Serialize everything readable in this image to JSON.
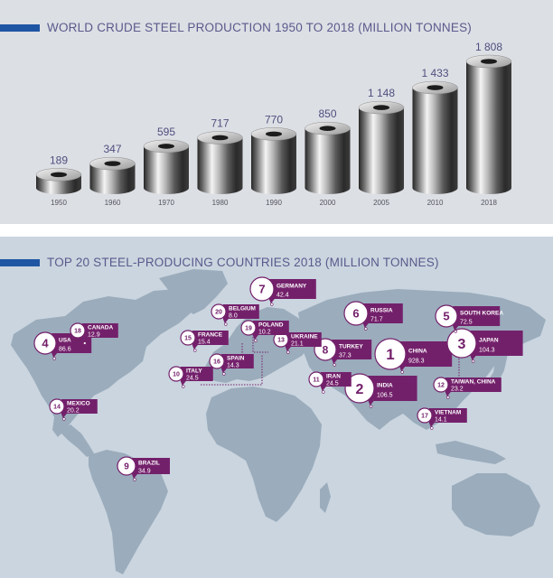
{
  "sections": {
    "production_title": "WORLD CRUDE STEEL PRODUCTION 1950 TO 2018 (MILLION TONNES)",
    "countries_title": "TOP 20 STEEL-PRODUCING COUNTRIES 2018 (MILLION TONNES)"
  },
  "colors": {
    "accent_blue": "#1f56a3",
    "tag_purple": "#73206b",
    "title_text": "#5a5a8c",
    "map_land": "#9bacbc",
    "map_sea": "#cad5df"
  },
  "chart_data": [
    {
      "type": "bar",
      "title": "WORLD CRUDE STEEL PRODUCTION 1950 TO 2018 (MILLION TONNES)",
      "categories": [
        "1950",
        "1960",
        "1970",
        "1980",
        "1990",
        "2000",
        "2005",
        "2010",
        "2018"
      ],
      "values": [
        189,
        347,
        595,
        717,
        770,
        850,
        1148,
        1433,
        1808
      ],
      "labels": [
        "189",
        "347",
        "595",
        "717",
        "770",
        "850",
        "1 148",
        "1 433",
        "1 808"
      ],
      "ylim": [
        0,
        1808
      ],
      "grid": false,
      "mark_style": "cylinder"
    },
    {
      "type": "table",
      "title": "TOP 20 STEEL-PRODUCING COUNTRIES 2018 (MILLION TONNES)",
      "rows": [
        {
          "rank": "1",
          "name": "CHINA",
          "value": "928.3"
        },
        {
          "rank": "2",
          "name": "INDIA",
          "value": "106.5"
        },
        {
          "rank": "3",
          "name": "JAPAN",
          "value": "104.3"
        },
        {
          "rank": "4",
          "name": "USA",
          "value": "86.6"
        },
        {
          "rank": "5",
          "name": "SOUTH KOREA",
          "value": "72.5"
        },
        {
          "rank": "6",
          "name": "RUSSIA",
          "value": "71.7"
        },
        {
          "rank": "7",
          "name": "GERMANY",
          "value": "42.4"
        },
        {
          "rank": "8",
          "name": "TURKEY",
          "value": "37.3"
        },
        {
          "rank": "9",
          "name": "BRAZIL",
          "value": "34.9"
        },
        {
          "rank": "10",
          "name": "ITALY",
          "value": "24.5"
        },
        {
          "rank": "11",
          "name": "IRAN",
          "value": "24.5"
        },
        {
          "rank": "12",
          "name": "TAIWAN, CHINA",
          "value": "23.2"
        },
        {
          "rank": "13",
          "name": "UKRAINE",
          "value": "21.1"
        },
        {
          "rank": "14",
          "name": "MEXICO",
          "value": "20.2"
        },
        {
          "rank": "15",
          "name": "FRANCE",
          "value": "15.4"
        },
        {
          "rank": "16",
          "name": "SPAIN",
          "value": "14.3"
        },
        {
          "rank": "17",
          "name": "VIETNAM",
          "value": "14.1"
        },
        {
          "rank": "18",
          "name": "CANADA",
          "value": "12.9"
        },
        {
          "rank": "19",
          "name": "POLAND",
          "value": "10.2"
        },
        {
          "rank": "20",
          "name": "BELGIUM",
          "value": "8.0"
        }
      ]
    }
  ]
}
